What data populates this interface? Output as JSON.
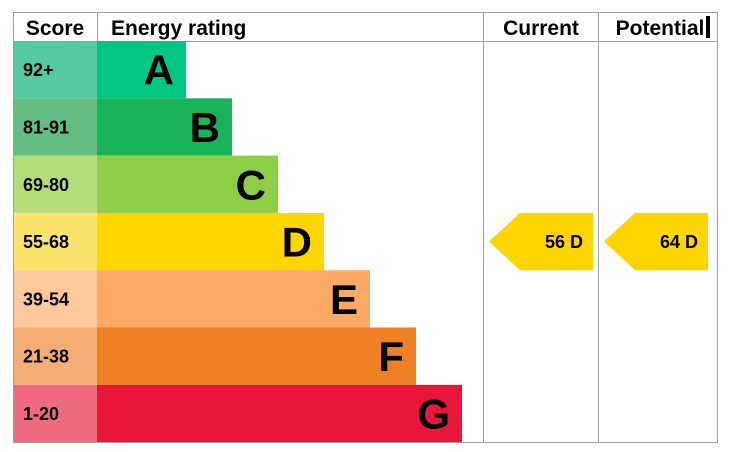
{
  "headers": {
    "score": "Score",
    "rating": "Energy rating",
    "current": "Current",
    "potential": "Potential"
  },
  "chart_data": {
    "type": "bar",
    "title": "",
    "bands": [
      {
        "letter": "A",
        "range": "92+",
        "min": 92,
        "max": 100,
        "color": "#00c781",
        "score_bg": "#55c9a0"
      },
      {
        "letter": "B",
        "range": "81-91",
        "min": 81,
        "max": 91,
        "color": "#19b459",
        "score_bg": "#63be83"
      },
      {
        "letter": "C",
        "range": "69-80",
        "min": 69,
        "max": 80,
        "color": "#8dce46",
        "score_bg": "#b2dd7a"
      },
      {
        "letter": "D",
        "range": "55-68",
        "min": 55,
        "max": 68,
        "color": "#ffd500",
        "score_bg": "#fbe36c"
      },
      {
        "letter": "E",
        "range": "39-54",
        "min": 39,
        "max": 54,
        "color": "#fcaa65",
        "score_bg": "#fbc89c"
      },
      {
        "letter": "F",
        "range": "21-38",
        "min": 21,
        "max": 38,
        "color": "#ef8023",
        "score_bg": "#f4ad72"
      },
      {
        "letter": "G",
        "range": "1-20",
        "min": 1,
        "max": 20,
        "color": "#e9153b",
        "score_bg": "#ef6a7e"
      }
    ],
    "current": {
      "value": 56,
      "band": "D",
      "label": "56  D",
      "color": "#ffd500"
    },
    "potential": {
      "value": 64,
      "band": "D",
      "label": "64  D",
      "color": "#ffd500"
    }
  }
}
